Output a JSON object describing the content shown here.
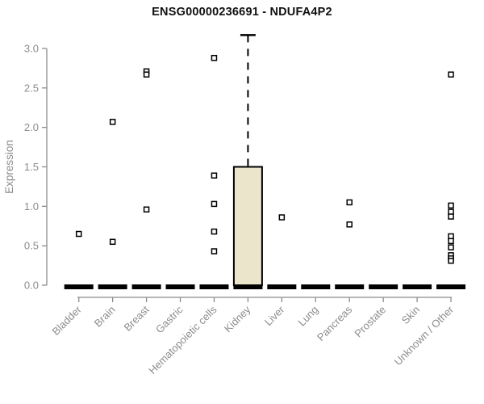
{
  "chart_data": {
    "type": "boxplot",
    "title": "ENSG00000236691 - NDUFA4P2",
    "ylabel": "Expression",
    "xlabel": "",
    "ylim": [
      0.0,
      3.2
    ],
    "yticks": [
      0.0,
      0.5,
      1.0,
      1.5,
      2.0,
      2.5,
      3.0
    ],
    "grid": false,
    "legend": "none",
    "categories": [
      "Bladder",
      "Brain",
      "Breast",
      "Gastric",
      "Hematopoietic cells",
      "Kidney",
      "Liver",
      "Lung",
      "Pancreas",
      "Prostate",
      "Skin",
      "Unknown / Other"
    ],
    "boxes": [
      {
        "category": "Bladder",
        "q1": 0,
        "median": 0,
        "q3": 0,
        "whisker_low": 0,
        "whisker_high": 0,
        "outliers": [
          0.65
        ]
      },
      {
        "category": "Brain",
        "q1": 0,
        "median": 0,
        "q3": 0,
        "whisker_low": 0,
        "whisker_high": 0,
        "outliers": [
          2.07,
          0.55
        ]
      },
      {
        "category": "Breast",
        "q1": 0,
        "median": 0,
        "q3": 0,
        "whisker_low": 0,
        "whisker_high": 0,
        "outliers": [
          2.71,
          2.67,
          0.96
        ]
      },
      {
        "category": "Gastric",
        "q1": 0,
        "median": 0,
        "q3": 0,
        "whisker_low": 0,
        "whisker_high": 0,
        "outliers": []
      },
      {
        "category": "Hematopoietic cells",
        "q1": 0,
        "median": 0,
        "q3": 0,
        "whisker_low": 0,
        "whisker_high": 0,
        "outliers": [
          2.88,
          1.39,
          1.03,
          0.68,
          0.43
        ]
      },
      {
        "category": "Kidney",
        "q1": 0,
        "median": 0,
        "q3": 1.5,
        "whisker_low": 0,
        "whisker_high": 3.17,
        "outliers": []
      },
      {
        "category": "Liver",
        "q1": 0,
        "median": 0,
        "q3": 0,
        "whisker_low": 0,
        "whisker_high": 0,
        "outliers": [
          0.86
        ]
      },
      {
        "category": "Lung",
        "q1": 0,
        "median": 0,
        "q3": 0,
        "whisker_low": 0,
        "whisker_high": 0,
        "outliers": []
      },
      {
        "category": "Pancreas",
        "q1": 0,
        "median": 0,
        "q3": 0,
        "whisker_low": 0,
        "whisker_high": 0,
        "outliers": [
          1.05,
          0.77
        ]
      },
      {
        "category": "Prostate",
        "q1": 0,
        "median": 0,
        "q3": 0,
        "whisker_low": 0,
        "whisker_high": 0,
        "outliers": []
      },
      {
        "category": "Skin",
        "q1": 0,
        "median": 0,
        "q3": 0,
        "whisker_low": 0,
        "whisker_high": 0,
        "outliers": []
      },
      {
        "category": "Unknown / Other",
        "q1": 0,
        "median": 0,
        "q3": 0,
        "whisker_low": 0,
        "whisker_high": 0,
        "outliers": [
          2.67,
          1.01,
          0.93,
          0.87,
          0.62,
          0.56,
          0.48,
          0.38,
          0.34,
          0.31
        ]
      }
    ],
    "colors": {
      "box_fill": "#ebe5cc",
      "box_border": "#000000",
      "median": "#000000",
      "whisker": "#000000",
      "outlier_stroke": "#000000",
      "outlier_fill": "#ffffff",
      "axis": "#8c8c8c",
      "tick_label": "#8c8c8c",
      "title": "#111111",
      "background": "#ffffff"
    }
  }
}
